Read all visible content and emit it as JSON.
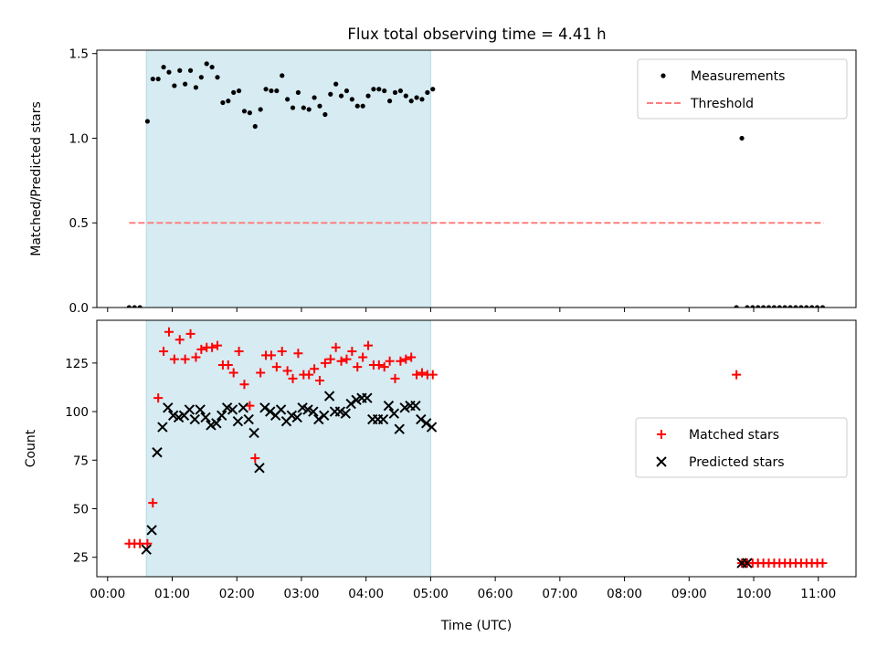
{
  "figure": {
    "title": "Flux total observing time = 4.41 h",
    "shaded_span": [
      "00:36",
      "05:00"
    ],
    "shade_color": "#add8e6"
  },
  "chart_data": [
    {
      "type": "scatter",
      "ylabel": "Matched/Predicted stars",
      "ylim": [
        0,
        1.52
      ],
      "yticks": [
        0.0,
        0.5,
        1.0,
        1.5
      ],
      "ytick_labels": [
        "0.0",
        "0.5",
        "1.0",
        "1.5"
      ],
      "legend_position": "upper right",
      "series": [
        {
          "name": "Measurements",
          "marker": "dot",
          "color": "#000000",
          "x": [
            "00:20",
            "00:25",
            "00:30",
            "00:37",
            "00:42",
            "00:47",
            "00:52",
            "00:57",
            "01:02",
            "01:07",
            "01:12",
            "01:17",
            "01:22",
            "01:27",
            "01:32",
            "01:37",
            "01:42",
            "01:47",
            "01:52",
            "01:57",
            "02:02",
            "02:07",
            "02:12",
            "02:17",
            "02:22",
            "02:27",
            "02:32",
            "02:37",
            "02:42",
            "02:47",
            "02:52",
            "02:57",
            "03:02",
            "03:07",
            "03:12",
            "03:17",
            "03:22",
            "03:27",
            "03:32",
            "03:37",
            "03:42",
            "03:47",
            "03:52",
            "03:57",
            "04:02",
            "04:07",
            "04:12",
            "04:17",
            "04:22",
            "04:27",
            "04:32",
            "04:37",
            "04:42",
            "04:47",
            "04:52",
            "04:57",
            "05:02",
            "09:44",
            "09:49",
            "09:54",
            "09:59",
            "10:04",
            "10:09",
            "10:14",
            "10:19",
            "10:24",
            "10:29",
            "10:34",
            "10:39",
            "10:44",
            "10:49",
            "10:54",
            "10:59",
            "11:04"
          ],
          "y": [
            0,
            0,
            0,
            1.1,
            1.35,
            1.35,
            1.42,
            1.39,
            1.31,
            1.4,
            1.32,
            1.4,
            1.3,
            1.36,
            1.44,
            1.42,
            1.36,
            1.21,
            1.22,
            1.27,
            1.28,
            1.16,
            1.15,
            1.07,
            1.17,
            1.29,
            1.28,
            1.28,
            1.37,
            1.23,
            1.18,
            1.27,
            1.18,
            1.17,
            1.24,
            1.19,
            1.14,
            1.26,
            1.32,
            1.25,
            1.28,
            1.23,
            1.19,
            1.19,
            1.25,
            1.29,
            1.29,
            1.28,
            1.22,
            1.27,
            1.28,
            1.25,
            1.22,
            1.24,
            1.23,
            1.27,
            1.29,
            0,
            1.0,
            0,
            0,
            0,
            0,
            0,
            0,
            0,
            0,
            0,
            0,
            0,
            0,
            0,
            0,
            0
          ]
        },
        {
          "name": "Threshold",
          "marker": "dashed-line",
          "color": "#ff7f7f",
          "x": [
            "00:20",
            "11:05"
          ],
          "y": [
            0.5,
            0.5
          ]
        }
      ]
    },
    {
      "type": "scatter",
      "ylabel": "Count",
      "xlabel": "Time (UTC)",
      "ylim": [
        15,
        147
      ],
      "yticks": [
        25,
        50,
        75,
        100,
        125
      ],
      "ytick_labels": [
        "25",
        "50",
        "75",
        "100",
        "125"
      ],
      "xlim": [
        "-00:10",
        "11:35"
      ],
      "xticks": [
        "00:00",
        "01:00",
        "02:00",
        "03:00",
        "04:00",
        "05:00",
        "06:00",
        "07:00",
        "08:00",
        "09:00",
        "10:00",
        "11:00"
      ],
      "legend_position": "center right",
      "series": [
        {
          "name": "Matched stars",
          "marker": "plus",
          "color": "#ff0000",
          "x": [
            "00:20",
            "00:25",
            "00:30",
            "00:37",
            "00:42",
            "00:47",
            "00:52",
            "00:57",
            "01:02",
            "01:07",
            "01:12",
            "01:17",
            "01:22",
            "01:27",
            "01:32",
            "01:37",
            "01:42",
            "01:47",
            "01:52",
            "01:57",
            "02:02",
            "02:07",
            "02:12",
            "02:17",
            "02:22",
            "02:27",
            "02:32",
            "02:37",
            "02:42",
            "02:47",
            "02:52",
            "02:57",
            "03:02",
            "03:07",
            "03:12",
            "03:17",
            "03:22",
            "03:27",
            "03:32",
            "03:37",
            "03:42",
            "03:47",
            "03:52",
            "03:57",
            "04:02",
            "04:07",
            "04:12",
            "04:17",
            "04:22",
            "04:27",
            "04:32",
            "04:37",
            "04:42",
            "04:47",
            "04:52",
            "04:57",
            "05:02",
            "09:44",
            "09:49",
            "09:54",
            "09:59",
            "10:04",
            "10:09",
            "10:14",
            "10:19",
            "10:24",
            "10:29",
            "10:34",
            "10:39",
            "10:44",
            "10:49",
            "10:54",
            "10:59",
            "11:04"
          ],
          "y": [
            32,
            32,
            32,
            32,
            53,
            107,
            131,
            141,
            127,
            137,
            127,
            140,
            128,
            132,
            133,
            133,
            134,
            124,
            124,
            120,
            131,
            114,
            103,
            76,
            120,
            129,
            129,
            123,
            131,
            121,
            117,
            130,
            119,
            119,
            122,
            116,
            125,
            127,
            133,
            126,
            127,
            131,
            123,
            128,
            134,
            124,
            124,
            123,
            126,
            117,
            126,
            127,
            128,
            119,
            120,
            119,
            119,
            119,
            22,
            22,
            22,
            22,
            22,
            22,
            22,
            22,
            22,
            22,
            22,
            22,
            22,
            22,
            22,
            22
          ]
        },
        {
          "name": "Predicted stars",
          "marker": "x",
          "color": "#000000",
          "x": [
            "00:36",
            "00:41",
            "00:46",
            "00:51",
            "00:56",
            "01:01",
            "01:06",
            "01:11",
            "01:16",
            "01:21",
            "01:26",
            "01:31",
            "01:36",
            "01:41",
            "01:46",
            "01:51",
            "01:56",
            "02:01",
            "02:06",
            "02:11",
            "02:16",
            "02:21",
            "02:26",
            "02:31",
            "02:36",
            "02:41",
            "02:46",
            "02:51",
            "02:56",
            "03:01",
            "03:06",
            "03:11",
            "03:16",
            "03:21",
            "03:26",
            "03:31",
            "03:36",
            "03:41",
            "03:46",
            "03:51",
            "03:56",
            "04:01",
            "04:06",
            "04:11",
            "04:16",
            "04:21",
            "04:26",
            "04:31",
            "04:36",
            "04:41",
            "04:46",
            "04:51",
            "04:56",
            "05:01",
            "09:49",
            "09:54"
          ],
          "y": [
            29,
            39,
            79,
            92,
            102,
            98,
            97,
            98,
            101,
            96,
            101,
            97,
            93,
            94,
            98,
            102,
            101,
            95,
            102,
            96,
            89,
            71,
            102,
            100,
            98,
            101,
            95,
            98,
            97,
            102,
            101,
            100,
            96,
            98,
            108,
            100,
            100,
            99,
            104,
            106,
            107,
            107,
            96,
            96,
            96,
            103,
            99,
            91,
            102,
            103,
            103,
            96,
            94,
            92,
            22,
            22
          ]
        }
      ]
    }
  ]
}
